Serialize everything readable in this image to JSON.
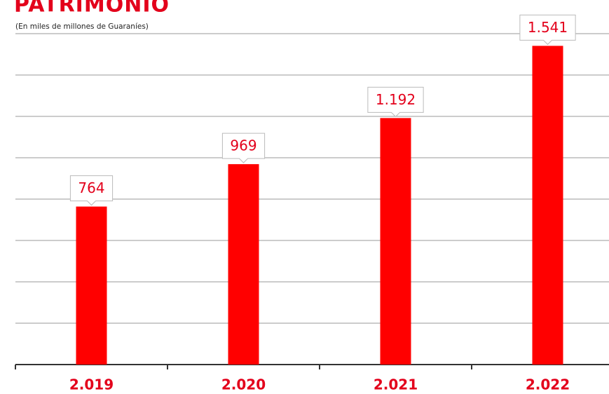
{
  "chart_data": {
    "type": "bar",
    "title": "PATRIMONIO",
    "subtitle": "(En miles de millones de Guaraníes)",
    "categories": [
      "2.019",
      "2.020",
      "2.021",
      "2.022"
    ],
    "values": [
      764,
      969,
      1192,
      1541
    ],
    "value_labels": [
      "764",
      "969",
      "1.192",
      "1.541"
    ],
    "color": "#ff0000",
    "ylim": [
      0,
      1600
    ],
    "yticks": [
      0,
      200,
      400,
      600,
      800,
      1000,
      1200,
      1400,
      1600
    ],
    "grid": true
  }
}
